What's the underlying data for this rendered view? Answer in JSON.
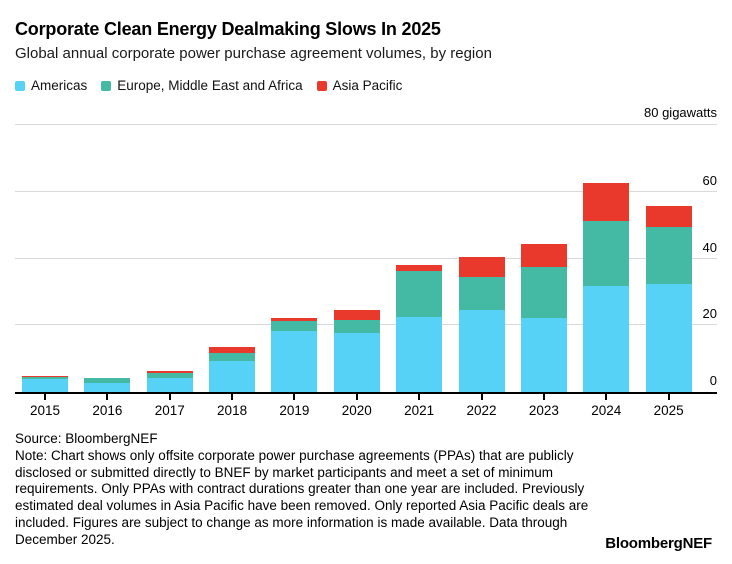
{
  "header": {
    "title": "Corporate Clean Energy Dealmaking Slows In 2025",
    "subtitle": "Global annual corporate power purchase agreement volumes, by region"
  },
  "chart_data": {
    "type": "bar",
    "stacked": true,
    "title": "Corporate Clean Energy Dealmaking Slows In 2025",
    "subtitle": "Global annual corporate power purchase agreement volumes, by region",
    "unit_label": "80 gigawatts",
    "ylabel": "gigawatts",
    "categories": [
      "2015",
      "2016",
      "2017",
      "2018",
      "2019",
      "2020",
      "2021",
      "2022",
      "2023",
      "2024",
      "2025"
    ],
    "series": [
      {
        "name": "Americas",
        "color": "#56d2f7",
        "values": [
          3.8,
          2.8,
          4.2,
          9.4,
          18.2,
          17.6,
          22.5,
          24.7,
          22.3,
          31.8,
          32.3
        ]
      },
      {
        "name": "Europe, Middle East and Africa",
        "color": "#44baa5",
        "values": [
          0.8,
          1.4,
          1.4,
          2.4,
          3.0,
          3.9,
          13.8,
          9.9,
          15.3,
          19.5,
          17.0
        ]
      },
      {
        "name": "Asia Pacific",
        "color": "#e8392c",
        "values": [
          0.3,
          0.1,
          0.8,
          1.6,
          1.0,
          3.0,
          1.8,
          6.0,
          6.8,
          11.2,
          6.4
        ]
      }
    ],
    "totals": [
      4.9,
      4.3,
      6.4,
      13.4,
      22.2,
      24.5,
      38.1,
      40.6,
      44.4,
      62.5,
      55.7
    ],
    "ylim": [
      0,
      80
    ],
    "yticks": [
      0,
      20,
      40,
      60,
      80
    ],
    "grid": true,
    "legend_position": "top",
    "axis_color": "#000000",
    "grid_color": "#d9d9d9"
  },
  "footer": {
    "source": "Source: BloombergNEF",
    "note": "Note: Chart shows only offsite corporate power purchase agreements (PPAs) that are publicly disclosed or submitted directly to BNEF by market participants and meet a set of minimum requirements. Only PPAs with contract durations greater than one year are included. Previously estimated deal volumes in Asia Pacific have been removed. Only reported Asia Pacific deals are included. Figures are subject to change as more information is made available. Data through December 2025.",
    "brand": "BloombergNEF"
  }
}
